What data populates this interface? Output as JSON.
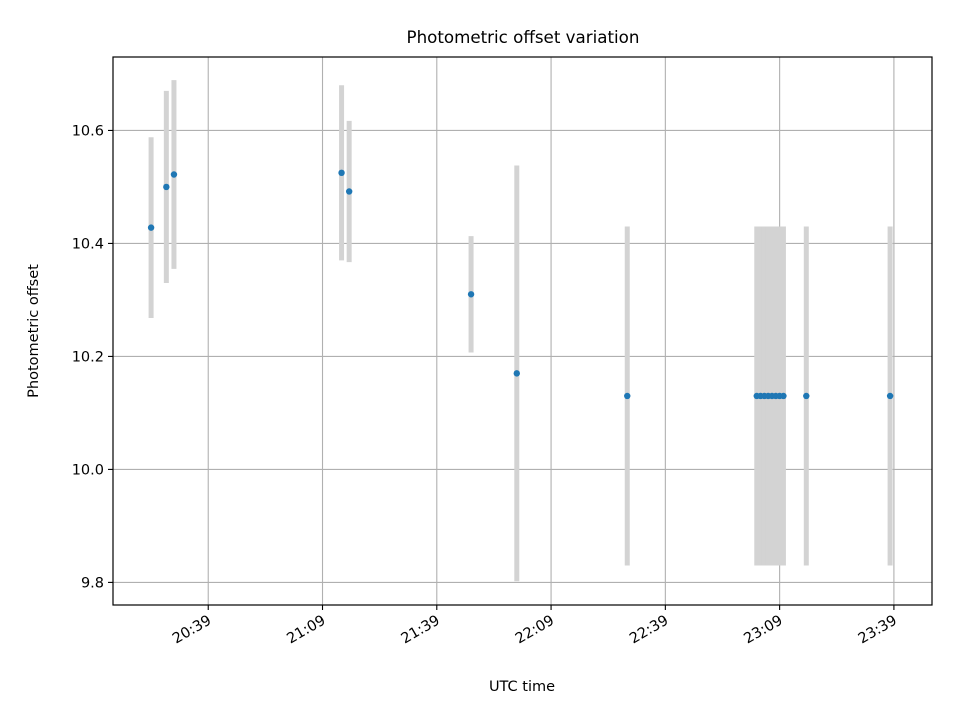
{
  "chart_data": {
    "type": "scatter",
    "title": "Photometric offset variation",
    "xlabel": "UTC time",
    "ylabel": "Photometric offset",
    "x_is_time": true,
    "xlim": [
      "20:14",
      "23:49"
    ],
    "ylim": [
      9.76,
      10.73
    ],
    "x_ticks": [
      "20:39",
      "21:09",
      "21:39",
      "22:09",
      "22:39",
      "23:09",
      "23:39"
    ],
    "y_ticks": [
      9.8,
      10.0,
      10.2,
      10.4,
      10.6
    ],
    "y_tick_labels": [
      "9.8",
      "10.0",
      "10.2",
      "10.4",
      "10.6"
    ],
    "grid": true,
    "point_color": "#1f77b4",
    "errorbar_color": "#d3d3d3",
    "points": [
      {
        "time": "20:24",
        "y": 10.428,
        "yerr": 0.16
      },
      {
        "time": "20:28",
        "y": 10.5,
        "yerr": 0.17
      },
      {
        "time": "20:30",
        "y": 10.522,
        "yerr": 0.167
      },
      {
        "time": "21:14",
        "y": 10.525,
        "yerr": 0.155
      },
      {
        "time": "21:16",
        "y": 10.492,
        "yerr": 0.125
      },
      {
        "time": "21:48",
        "y": 10.31,
        "yerr": 0.103
      },
      {
        "time": "22:00",
        "y": 10.17,
        "yerr": 0.368
      },
      {
        "time": "22:29",
        "y": 10.13,
        "yerr": 0.3
      },
      {
        "time": "23:03",
        "y": 10.13,
        "yerr": 0.3
      },
      {
        "time": "23:04",
        "y": 10.13,
        "yerr": 0.3
      },
      {
        "time": "23:05",
        "y": 10.13,
        "yerr": 0.3
      },
      {
        "time": "23:06",
        "y": 10.13,
        "yerr": 0.3
      },
      {
        "time": "23:07",
        "y": 10.13,
        "yerr": 0.3
      },
      {
        "time": "23:08",
        "y": 10.13,
        "yerr": 0.3
      },
      {
        "time": "23:09",
        "y": 10.13,
        "yerr": 0.3
      },
      {
        "time": "23:10",
        "y": 10.13,
        "yerr": 0.3
      },
      {
        "time": "23:16",
        "y": 10.13,
        "yerr": 0.3
      },
      {
        "time": "23:38",
        "y": 10.13,
        "yerr": 0.3
      }
    ]
  }
}
